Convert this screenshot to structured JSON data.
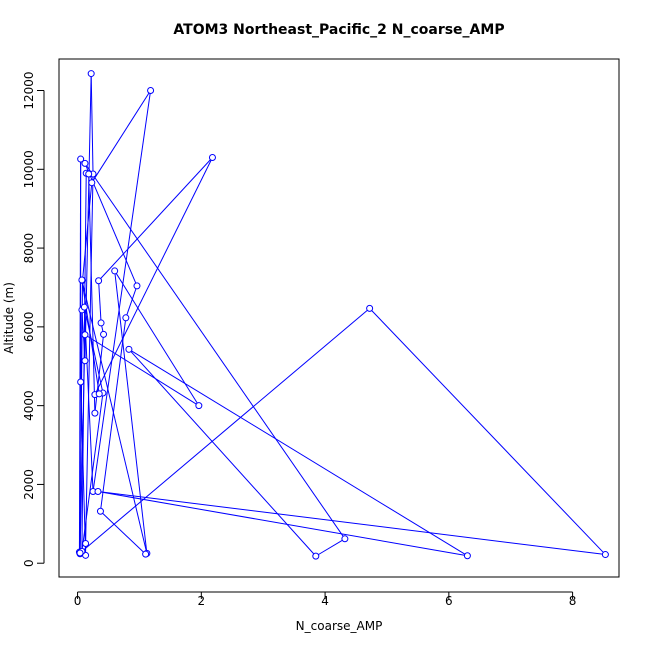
{
  "chart_data": {
    "type": "line",
    "title": "ATOM3 Northeast_Pacific_2 N_coarse_AMP",
    "xlabel": "N_coarse_AMP",
    "ylabel": "Altitude (m)",
    "xlim": [
      -0.3,
      8.75
    ],
    "ylim": [
      -350,
      12800
    ],
    "xticks": [
      0,
      2,
      4,
      6,
      8
    ],
    "yticks": [
      0,
      2000,
      4000,
      6000,
      8000,
      10000,
      12000
    ],
    "xtick_labels": [
      "0",
      "2",
      "4",
      "6",
      "8"
    ],
    "ytick_labels": [
      "0",
      "2000",
      "4000",
      "6000",
      "8000",
      "10000",
      "12000"
    ],
    "grid": false,
    "markers": "open-circle",
    "series": [
      {
        "color": "#0000ff",
        "x": [
          0.04,
          0.03,
          0.05,
          0.05,
          0.13,
          0.13,
          0.25,
          0.22,
          0.12,
          0.07,
          0.04,
          0.08,
          0.23,
          1.18,
          0.25,
          0.11,
          0.41,
          0.07,
          0.14,
          0.18,
          0.28,
          0.42,
          0.38,
          0.34,
          2.18,
          0.28,
          0.35,
          0.07,
          1.12,
          0.6,
          1.96,
          0.12,
          0.04,
          4.72,
          8.53,
          0.33,
          6.3,
          0.83,
          3.85,
          4.32,
          0.12,
          0.96,
          0.78,
          0.37,
          1.1
        ],
        "y": [
          240,
          280,
          10260,
          4600,
          200,
          500,
          9880,
          12430,
          5140,
          6430,
          260,
          7180,
          9660,
          12000,
          1820,
          6500,
          4320,
          300,
          9900,
          9880,
          3810,
          5810,
          6100,
          7170,
          10300,
          4280,
          4300,
          7190,
          250,
          7420,
          4000,
          5800,
          260,
          6470,
          220,
          1820,
          190,
          5430,
          180,
          620,
          10150,
          7040,
          6230,
          1320,
          230
        ]
      }
    ]
  }
}
